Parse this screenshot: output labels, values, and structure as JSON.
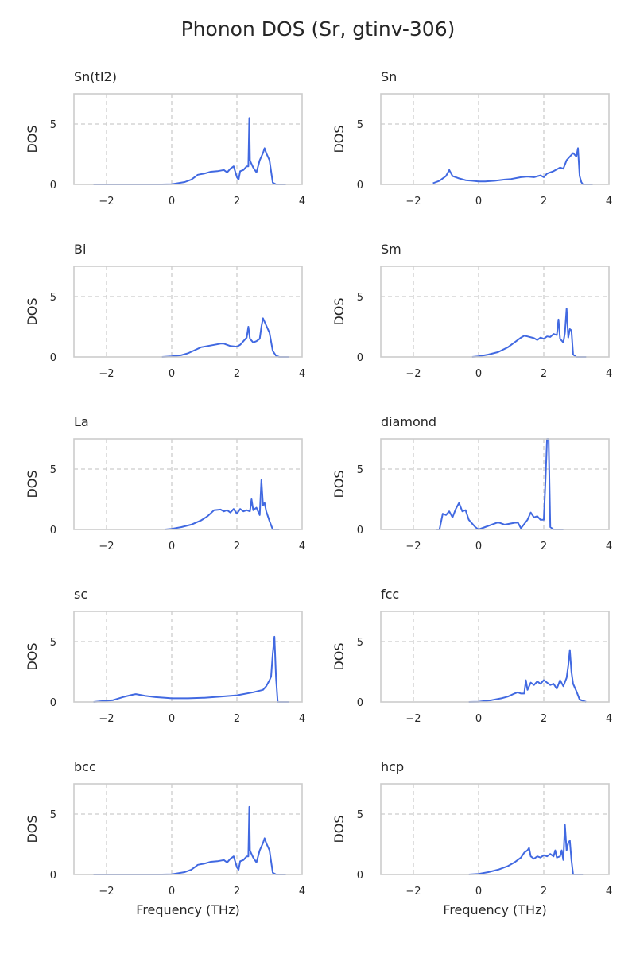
{
  "figure": {
    "title": "Phonon DOS (Sr, gtinv-306)",
    "line_color": "#4169e1",
    "frame_color": "#cccccc",
    "grid_color": "#cccccc"
  },
  "chart_data": [
    {
      "type": "line",
      "title": "Sn(tI2)",
      "xlabel": "",
      "ylabel": "DOS",
      "xlim": [
        -3,
        4
      ],
      "ylim": [
        0,
        7.5
      ],
      "xticks": [
        -2,
        0,
        2,
        4
      ],
      "yticks": [
        0,
        5
      ],
      "xtick_labels": [
        "−2",
        "0",
        "2",
        "4"
      ],
      "ytick_labels": [
        "0",
        "5"
      ],
      "grid": true,
      "series": [
        {
          "x": [
            -2.4,
            -0.3,
            0,
            0.4,
            0.6,
            0.75,
            0.8,
            1.0,
            1.2,
            1.4,
            1.6,
            1.7,
            1.8,
            1.9,
            2.0,
            2.05,
            2.1,
            2.2,
            2.3,
            2.35,
            2.38,
            2.4,
            2.43,
            2.5,
            2.6,
            2.7,
            2.8,
            2.85,
            2.9,
            3.0,
            3.1,
            3.2,
            3.5
          ],
          "y": [
            0,
            0,
            0.02,
            0.2,
            0.4,
            0.7,
            0.8,
            0.9,
            1.05,
            1.1,
            1.2,
            1.0,
            1.3,
            1.5,
            0.6,
            0.4,
            1.1,
            1.2,
            1.5,
            1.5,
            5.5,
            2.0,
            1.8,
            1.4,
            1.0,
            2.0,
            2.6,
            3.0,
            2.6,
            2.0,
            0.15,
            0,
            0
          ]
        }
      ]
    },
    {
      "type": "line",
      "title": "Sn",
      "xlabel": "",
      "ylabel": "DOS",
      "xlim": [
        -3,
        4
      ],
      "ylim": [
        0,
        7.5
      ],
      "xticks": [
        -2,
        0,
        2,
        4
      ],
      "yticks": [
        0,
        5
      ],
      "xtick_labels": [
        "−2",
        "0",
        "2",
        "4"
      ],
      "ytick_labels": [
        "0",
        "5"
      ],
      "grid": true,
      "series": [
        {
          "x": [
            -1.4,
            -1.2,
            -1.0,
            -0.9,
            -0.8,
            -0.6,
            -0.4,
            -0.2,
            0,
            0.2,
            0.5,
            0.8,
            1.0,
            1.3,
            1.5,
            1.7,
            1.9,
            2.0,
            2.1,
            2.3,
            2.5,
            2.6,
            2.7,
            2.8,
            2.9,
            3.0,
            3.05,
            3.1,
            3.15,
            3.2,
            3.5
          ],
          "y": [
            0.1,
            0.3,
            0.7,
            1.2,
            0.7,
            0.5,
            0.35,
            0.3,
            0.25,
            0.25,
            0.3,
            0.4,
            0.45,
            0.6,
            0.65,
            0.6,
            0.75,
            0.6,
            0.9,
            1.1,
            1.4,
            1.3,
            2.0,
            2.3,
            2.6,
            2.3,
            3.0,
            0.7,
            0.2,
            0,
            0
          ]
        }
      ]
    },
    {
      "type": "line",
      "title": "Bi",
      "xlabel": "",
      "ylabel": "DOS",
      "xlim": [
        -3,
        4
      ],
      "ylim": [
        0,
        7.5
      ],
      "xticks": [
        -2,
        0,
        2,
        4
      ],
      "yticks": [
        0,
        5
      ],
      "xtick_labels": [
        "−2",
        "0",
        "2",
        "4"
      ],
      "ytick_labels": [
        "0",
        "5"
      ],
      "grid": true,
      "series": [
        {
          "x": [
            -0.3,
            0,
            0.3,
            0.5,
            0.7,
            0.9,
            1.1,
            1.3,
            1.5,
            1.6,
            1.8,
            2.0,
            2.1,
            2.2,
            2.3,
            2.35,
            2.4,
            2.5,
            2.6,
            2.7,
            2.75,
            2.8,
            2.9,
            3.0,
            3.1,
            3.2,
            3.3,
            3.6
          ],
          "y": [
            0,
            0.05,
            0.15,
            0.3,
            0.55,
            0.8,
            0.9,
            1.0,
            1.1,
            1.1,
            0.9,
            0.85,
            1.0,
            1.3,
            1.6,
            2.5,
            1.5,
            1.2,
            1.3,
            1.5,
            2.5,
            3.2,
            2.6,
            2.0,
            0.5,
            0.1,
            0,
            0
          ]
        }
      ]
    },
    {
      "type": "line",
      "title": "Sm",
      "xlabel": "",
      "ylabel": "DOS",
      "xlim": [
        -3,
        4
      ],
      "ylim": [
        0,
        7.5
      ],
      "xticks": [
        -2,
        0,
        2,
        4
      ],
      "yticks": [
        0,
        5
      ],
      "xtick_labels": [
        "−2",
        "0",
        "2",
        "4"
      ],
      "ytick_labels": [
        "0",
        "5"
      ],
      "grid": true,
      "series": [
        {
          "x": [
            -0.2,
            0,
            0.3,
            0.6,
            0.9,
            1.1,
            1.3,
            1.4,
            1.5,
            1.7,
            1.8,
            1.9,
            2.0,
            2.1,
            2.2,
            2.3,
            2.4,
            2.45,
            2.5,
            2.6,
            2.65,
            2.7,
            2.75,
            2.8,
            2.85,
            2.9,
            3.0,
            3.3
          ],
          "y": [
            0,
            0.05,
            0.2,
            0.4,
            0.8,
            1.2,
            1.6,
            1.75,
            1.7,
            1.55,
            1.4,
            1.6,
            1.5,
            1.7,
            1.65,
            1.9,
            1.8,
            3.1,
            1.5,
            1.2,
            2.0,
            4.0,
            1.6,
            2.3,
            2.2,
            0.2,
            0,
            0
          ]
        }
      ]
    },
    {
      "type": "line",
      "title": "La",
      "xlabel": "",
      "ylabel": "DOS",
      "xlim": [
        -3,
        4
      ],
      "ylim": [
        0,
        7.5
      ],
      "xticks": [
        -2,
        0,
        2,
        4
      ],
      "yticks": [
        0,
        5
      ],
      "xtick_labels": [
        "−2",
        "0",
        "2",
        "4"
      ],
      "ytick_labels": [
        "0",
        "5"
      ],
      "grid": true,
      "series": [
        {
          "x": [
            -0.2,
            0,
            0.3,
            0.6,
            0.9,
            1.1,
            1.3,
            1.5,
            1.6,
            1.7,
            1.8,
            1.9,
            2.0,
            2.1,
            2.2,
            2.3,
            2.4,
            2.45,
            2.5,
            2.6,
            2.7,
            2.75,
            2.8,
            2.85,
            2.9,
            3.0,
            3.1,
            3.3
          ],
          "y": [
            0,
            0.05,
            0.2,
            0.4,
            0.75,
            1.1,
            1.6,
            1.65,
            1.5,
            1.6,
            1.4,
            1.7,
            1.3,
            1.7,
            1.5,
            1.6,
            1.5,
            2.5,
            1.6,
            1.8,
            1.2,
            4.1,
            2.0,
            2.2,
            1.5,
            0.7,
            0,
            0
          ]
        }
      ]
    },
    {
      "type": "line",
      "title": "diamond",
      "xlabel": "",
      "ylabel": "DOS",
      "xlim": [
        -3,
        4
      ],
      "ylim": [
        0,
        7.5
      ],
      "xticks": [
        -2,
        0,
        2,
        4
      ],
      "yticks": [
        0,
        5
      ],
      "xtick_labels": [
        "−2",
        "0",
        "2",
        "4"
      ],
      "ytick_labels": [
        "0",
        "5"
      ],
      "grid": true,
      "series": [
        {
          "x": [
            -1.3,
            -1.2,
            -1.1,
            -1.0,
            -0.9,
            -0.8,
            -0.7,
            -0.6,
            -0.5,
            -0.4,
            -0.3,
            -0.2,
            -0.1,
            0,
            0.2,
            0.4,
            0.6,
            0.8,
            1.0,
            1.2,
            1.3,
            1.5,
            1.6,
            1.7,
            1.8,
            1.9,
            2.0,
            2.05,
            2.1,
            2.15,
            2.2,
            2.3,
            2.6
          ],
          "y": [
            0,
            0,
            1.3,
            1.2,
            1.5,
            1.0,
            1.7,
            2.2,
            1.5,
            1.6,
            0.8,
            0.5,
            0.2,
            0,
            0.2,
            0.4,
            0.6,
            0.4,
            0.5,
            0.6,
            0.1,
            0.8,
            1.4,
            1.0,
            1.1,
            0.8,
            0.8,
            3.8,
            7.5,
            7.5,
            0.2,
            0,
            0
          ]
        }
      ]
    },
    {
      "type": "line",
      "title": "sc",
      "xlabel": "",
      "ylabel": "DOS",
      "xlim": [
        -3,
        4
      ],
      "ylim": [
        0,
        7.5
      ],
      "xticks": [
        -2,
        0,
        2,
        4
      ],
      "yticks": [
        0,
        5
      ],
      "xtick_labels": [
        "−2",
        "0",
        "2",
        "4"
      ],
      "ytick_labels": [
        "0",
        "5"
      ],
      "grid": true,
      "series": [
        {
          "x": [
            -2.4,
            -1.8,
            -1.5,
            -1.2,
            -1.1,
            -0.8,
            -0.5,
            -0.2,
            0,
            0.5,
            1.0,
            1.5,
            2.0,
            2.5,
            2.8,
            2.9,
            3.0,
            3.05,
            3.1,
            3.15,
            3.2,
            3.25,
            3.6
          ],
          "y": [
            0,
            0.15,
            0.4,
            0.6,
            0.65,
            0.5,
            0.4,
            0.35,
            0.3,
            0.3,
            0.35,
            0.45,
            0.55,
            0.8,
            1.0,
            1.3,
            1.8,
            2.1,
            4.0,
            5.4,
            2.0,
            0,
            0
          ]
        }
      ]
    },
    {
      "type": "line",
      "title": "fcc",
      "xlabel": "",
      "ylabel": "DOS",
      "xlim": [
        -3,
        4
      ],
      "ylim": [
        0,
        7.5
      ],
      "xticks": [
        -2,
        0,
        2,
        4
      ],
      "yticks": [
        0,
        5
      ],
      "xtick_labels": [
        "−2",
        "0",
        "2",
        "4"
      ],
      "ytick_labels": [
        "0",
        "5"
      ],
      "grid": true,
      "series": [
        {
          "x": [
            -0.3,
            0,
            0.4,
            0.7,
            0.9,
            1.1,
            1.2,
            1.3,
            1.4,
            1.45,
            1.5,
            1.6,
            1.7,
            1.8,
            1.9,
            2.0,
            2.1,
            2.2,
            2.3,
            2.4,
            2.5,
            2.6,
            2.7,
            2.75,
            2.8,
            2.85,
            2.9,
            3.0,
            3.1,
            3.3
          ],
          "y": [
            0,
            0.02,
            0.15,
            0.3,
            0.45,
            0.7,
            0.8,
            0.7,
            0.7,
            1.8,
            1.0,
            1.6,
            1.4,
            1.7,
            1.5,
            1.8,
            1.6,
            1.4,
            1.5,
            1.1,
            1.8,
            1.3,
            2.0,
            3.0,
            4.3,
            2.5,
            1.5,
            0.9,
            0.2,
            0
          ]
        }
      ]
    },
    {
      "type": "line",
      "title": "bcc",
      "xlabel": "Frequency (THz)",
      "ylabel": "DOS",
      "xlim": [
        -3,
        4
      ],
      "ylim": [
        0,
        7.5
      ],
      "xticks": [
        -2,
        0,
        2,
        4
      ],
      "yticks": [
        0,
        5
      ],
      "xtick_labels": [
        "−2",
        "0",
        "2",
        "4"
      ],
      "ytick_labels": [
        "0",
        "5"
      ],
      "grid": true,
      "series": [
        {
          "x": [
            -2.4,
            -0.3,
            0,
            0.4,
            0.6,
            0.75,
            0.8,
            1.0,
            1.2,
            1.4,
            1.6,
            1.7,
            1.8,
            1.9,
            2.0,
            2.05,
            2.1,
            2.2,
            2.3,
            2.35,
            2.38,
            2.4,
            2.43,
            2.5,
            2.6,
            2.7,
            2.8,
            2.85,
            2.9,
            3.0,
            3.1,
            3.2,
            3.5
          ],
          "y": [
            0,
            0,
            0.02,
            0.2,
            0.4,
            0.7,
            0.8,
            0.9,
            1.05,
            1.1,
            1.2,
            1.0,
            1.3,
            1.5,
            0.6,
            0.4,
            1.1,
            1.2,
            1.5,
            1.5,
            5.6,
            2.0,
            1.8,
            1.4,
            1.0,
            2.0,
            2.6,
            3.0,
            2.6,
            2.0,
            0.15,
            0,
            0
          ]
        }
      ]
    },
    {
      "type": "line",
      "title": "hcp",
      "xlabel": "Frequency (THz)",
      "ylabel": "DOS",
      "xlim": [
        -3,
        4
      ],
      "ylim": [
        0,
        7.5
      ],
      "xticks": [
        -2,
        0,
        2,
        4
      ],
      "yticks": [
        0,
        5
      ],
      "xtick_labels": [
        "−2",
        "0",
        "2",
        "4"
      ],
      "ytick_labels": [
        "0",
        "5"
      ],
      "grid": true,
      "series": [
        {
          "x": [
            -0.3,
            0,
            0.3,
            0.6,
            0.9,
            1.1,
            1.3,
            1.4,
            1.5,
            1.55,
            1.6,
            1.7,
            1.8,
            1.9,
            2.0,
            2.1,
            2.2,
            2.3,
            2.35,
            2.4,
            2.5,
            2.55,
            2.6,
            2.65,
            2.7,
            2.75,
            2.8,
            2.85,
            2.9,
            3.2
          ],
          "y": [
            0,
            0.05,
            0.2,
            0.4,
            0.7,
            1.0,
            1.4,
            1.8,
            2.0,
            2.2,
            1.5,
            1.3,
            1.5,
            1.4,
            1.6,
            1.5,
            1.7,
            1.5,
            2.0,
            1.4,
            1.5,
            2.0,
            1.2,
            4.1,
            2.0,
            2.6,
            2.8,
            1.2,
            0,
            0
          ]
        }
      ]
    }
  ]
}
